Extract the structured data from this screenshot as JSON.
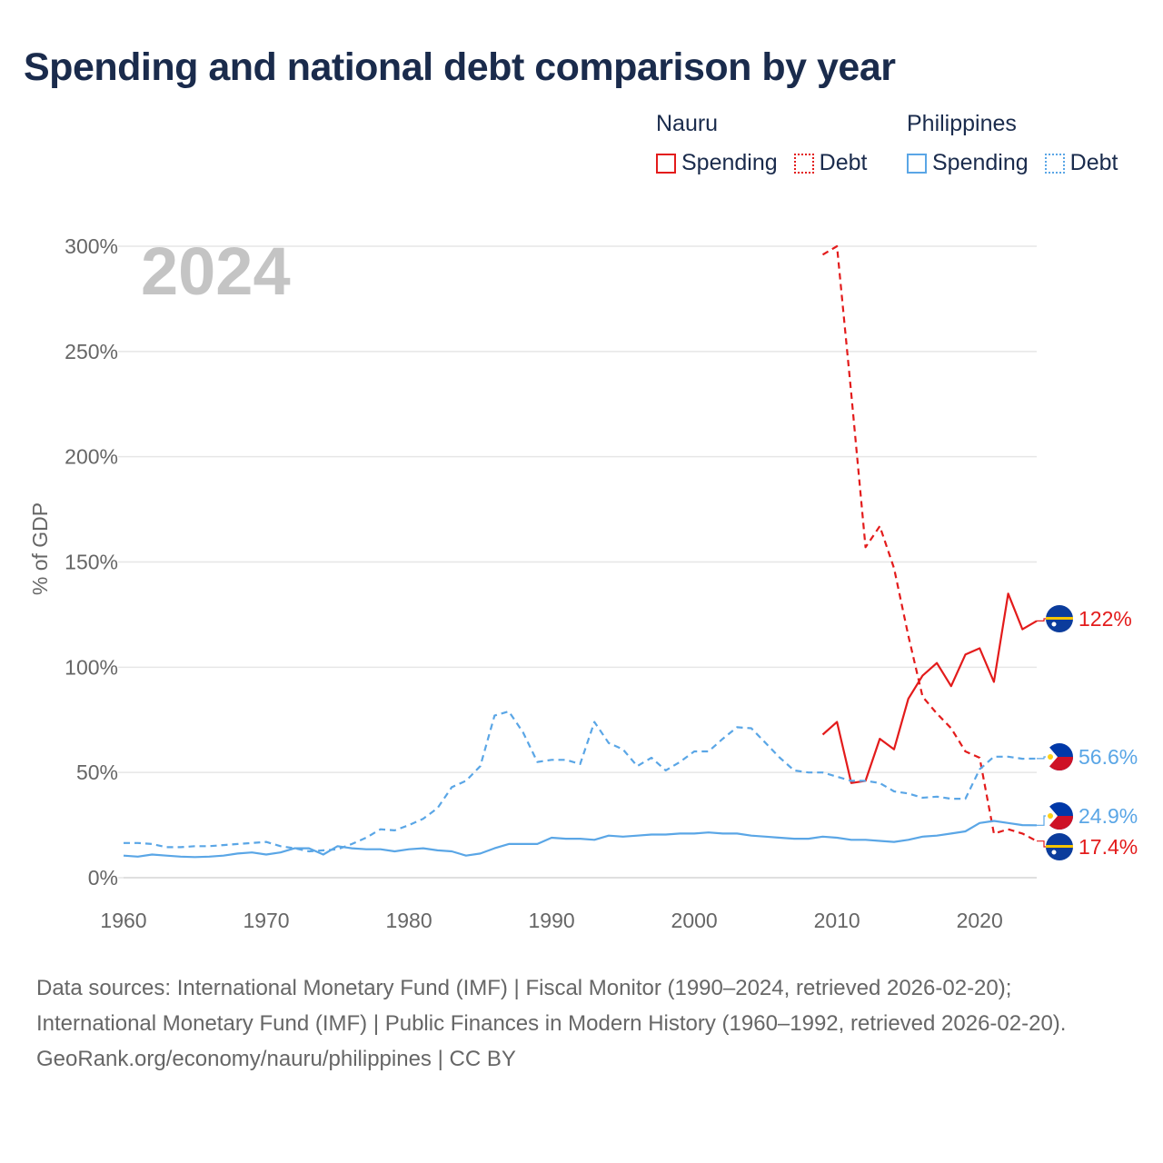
{
  "title": "Spending and national debt comparison by year",
  "legend": {
    "groups": [
      {
        "country": "Nauru",
        "spending_label": "Spending",
        "debt_label": "Debt"
      },
      {
        "country": "Philippines",
        "spending_label": "Spending",
        "debt_label": "Debt"
      }
    ]
  },
  "colors": {
    "nauru": "#e31b1b",
    "philippines": "#5aa6e6",
    "grid": "#e6e6e6",
    "axis_text": "#666666",
    "year_watermark": "#c4c4c4"
  },
  "chart_data": {
    "type": "line",
    "title": "Spending and national debt comparison by year",
    "ylabel": "% of GDP",
    "xlabel": "",
    "xlim": [
      1960,
      2024
    ],
    "ylim": [
      0,
      300
    ],
    "x_ticks": [
      1960,
      1970,
      1980,
      1990,
      2000,
      2010,
      2020
    ],
    "y_ticks": [
      0,
      50,
      100,
      150,
      200,
      250,
      300
    ],
    "y_tick_labels": [
      "0%",
      "50%",
      "100%",
      "150%",
      "200%",
      "250%",
      "300%"
    ],
    "year_label": "2024",
    "grid": true,
    "series": [
      {
        "name": "Nauru Spending",
        "country": "Nauru",
        "metric": "Spending",
        "style": "solid",
        "end_label": "122%",
        "points": [
          [
            2009,
            68
          ],
          [
            2010,
            74
          ],
          [
            2011,
            45
          ],
          [
            2012,
            46
          ],
          [
            2013,
            66
          ],
          [
            2014,
            61
          ],
          [
            2015,
            85
          ],
          [
            2016,
            96
          ],
          [
            2017,
            102
          ],
          [
            2018,
            91
          ],
          [
            2019,
            106
          ],
          [
            2020,
            109
          ],
          [
            2021,
            93
          ],
          [
            2022,
            135
          ],
          [
            2023,
            118
          ],
          [
            2024,
            122
          ]
        ]
      },
      {
        "name": "Nauru Debt",
        "country": "Nauru",
        "metric": "Debt",
        "style": "dashed",
        "end_label": "17.4%",
        "points": [
          [
            2009,
            296
          ],
          [
            2010,
            300
          ],
          [
            2011,
            230
          ],
          [
            2012,
            157
          ],
          [
            2013,
            167
          ],
          [
            2014,
            147
          ],
          [
            2015,
            115
          ],
          [
            2016,
            86
          ],
          [
            2017,
            78
          ],
          [
            2018,
            71
          ],
          [
            2019,
            60
          ],
          [
            2020,
            57
          ],
          [
            2021,
            21
          ],
          [
            2022,
            23
          ],
          [
            2023,
            21
          ],
          [
            2024,
            17.4
          ]
        ]
      },
      {
        "name": "Philippines Spending",
        "country": "Philippines",
        "metric": "Spending",
        "style": "solid",
        "end_label": "24.9%",
        "points": [
          [
            1960,
            10.5
          ],
          [
            1961,
            10
          ],
          [
            1962,
            11
          ],
          [
            1963,
            10.5
          ],
          [
            1964,
            10
          ],
          [
            1965,
            9.8
          ],
          [
            1966,
            10
          ],
          [
            1967,
            10.5
          ],
          [
            1968,
            11.5
          ],
          [
            1969,
            12
          ],
          [
            1970,
            11
          ],
          [
            1971,
            12
          ],
          [
            1972,
            14
          ],
          [
            1973,
            14
          ],
          [
            1974,
            11
          ],
          [
            1975,
            15
          ],
          [
            1976,
            14
          ],
          [
            1977,
            13.5
          ],
          [
            1978,
            13.5
          ],
          [
            1979,
            12.5
          ],
          [
            1980,
            13.5
          ],
          [
            1981,
            14
          ],
          [
            1982,
            13
          ],
          [
            1983,
            12.5
          ],
          [
            1984,
            10.5
          ],
          [
            1985,
            11.5
          ],
          [
            1986,
            14
          ],
          [
            1987,
            16
          ],
          [
            1988,
            16
          ],
          [
            1989,
            16
          ],
          [
            1990,
            19
          ],
          [
            1991,
            18.5
          ],
          [
            1992,
            18.5
          ],
          [
            1993,
            18
          ],
          [
            1994,
            20
          ],
          [
            1995,
            19.5
          ],
          [
            1996,
            20
          ],
          [
            1997,
            20.5
          ],
          [
            1998,
            20.5
          ],
          [
            1999,
            21
          ],
          [
            2000,
            21
          ],
          [
            2001,
            21.5
          ],
          [
            2002,
            21
          ],
          [
            2003,
            21
          ],
          [
            2004,
            20
          ],
          [
            2005,
            19.5
          ],
          [
            2006,
            19
          ],
          [
            2007,
            18.5
          ],
          [
            2008,
            18.5
          ],
          [
            2009,
            19.5
          ],
          [
            2010,
            19
          ],
          [
            2011,
            18
          ],
          [
            2012,
            18
          ],
          [
            2013,
            17.5
          ],
          [
            2014,
            17
          ],
          [
            2015,
            18
          ],
          [
            2016,
            19.5
          ],
          [
            2017,
            20
          ],
          [
            2018,
            21
          ],
          [
            2019,
            22
          ],
          [
            2020,
            26
          ],
          [
            2021,
            27
          ],
          [
            2022,
            26
          ],
          [
            2023,
            25
          ],
          [
            2024,
            24.9
          ]
        ]
      },
      {
        "name": "Philippines Debt",
        "country": "Philippines",
        "metric": "Debt",
        "style": "dashed",
        "end_label": "56.6%",
        "points": [
          [
            1960,
            16.5
          ],
          [
            1961,
            16.5
          ],
          [
            1962,
            16
          ],
          [
            1963,
            14.5
          ],
          [
            1964,
            14.5
          ],
          [
            1965,
            15
          ],
          [
            1966,
            15
          ],
          [
            1967,
            15.5
          ],
          [
            1968,
            16
          ],
          [
            1969,
            16.5
          ],
          [
            1970,
            17
          ],
          [
            1971,
            15
          ],
          [
            1972,
            14
          ],
          [
            1973,
            12.5
          ],
          [
            1974,
            13
          ],
          [
            1975,
            13.5
          ],
          [
            1976,
            16
          ],
          [
            1977,
            19
          ],
          [
            1978,
            23
          ],
          [
            1979,
            22.5
          ],
          [
            1980,
            25
          ],
          [
            1981,
            28
          ],
          [
            1982,
            33
          ],
          [
            1983,
            43
          ],
          [
            1984,
            46
          ],
          [
            1985,
            53
          ],
          [
            1986,
            77
          ],
          [
            1987,
            79
          ],
          [
            1988,
            69
          ],
          [
            1989,
            55
          ],
          [
            1990,
            56
          ],
          [
            1991,
            56
          ],
          [
            1992,
            54
          ],
          [
            1993,
            74
          ],
          [
            1994,
            64
          ],
          [
            1995,
            61
          ],
          [
            1996,
            53
          ],
          [
            1997,
            57
          ],
          [
            1998,
            51
          ],
          [
            1999,
            55
          ],
          [
            2000,
            60
          ],
          [
            2001,
            60
          ],
          [
            2002,
            66
          ],
          [
            2003,
            71.5
          ],
          [
            2004,
            71
          ],
          [
            2005,
            64
          ],
          [
            2006,
            57
          ],
          [
            2007,
            51
          ],
          [
            2008,
            50
          ],
          [
            2009,
            50
          ],
          [
            2010,
            48
          ],
          [
            2011,
            46
          ],
          [
            2012,
            46
          ],
          [
            2013,
            45
          ],
          [
            2014,
            41
          ],
          [
            2015,
            40
          ],
          [
            2016,
            38
          ],
          [
            2017,
            38.5
          ],
          [
            2018,
            37.5
          ],
          [
            2019,
            37.5
          ],
          [
            2020,
            51.5
          ],
          [
            2021,
            57.5
          ],
          [
            2022,
            57.5
          ],
          [
            2023,
            56.5
          ],
          [
            2024,
            56.6
          ]
        ]
      }
    ]
  },
  "footer": {
    "sources": "Data sources: International Monetary Fund (IMF) | Fiscal Monitor (1990–2024, retrieved 2026-02-20); International Monetary Fund (IMF) | Public Finances in Modern History (1960–1992, retrieved 2026-02-20).",
    "credit": "GeoRank.org/economy/nauru/philippines | CC BY"
  }
}
